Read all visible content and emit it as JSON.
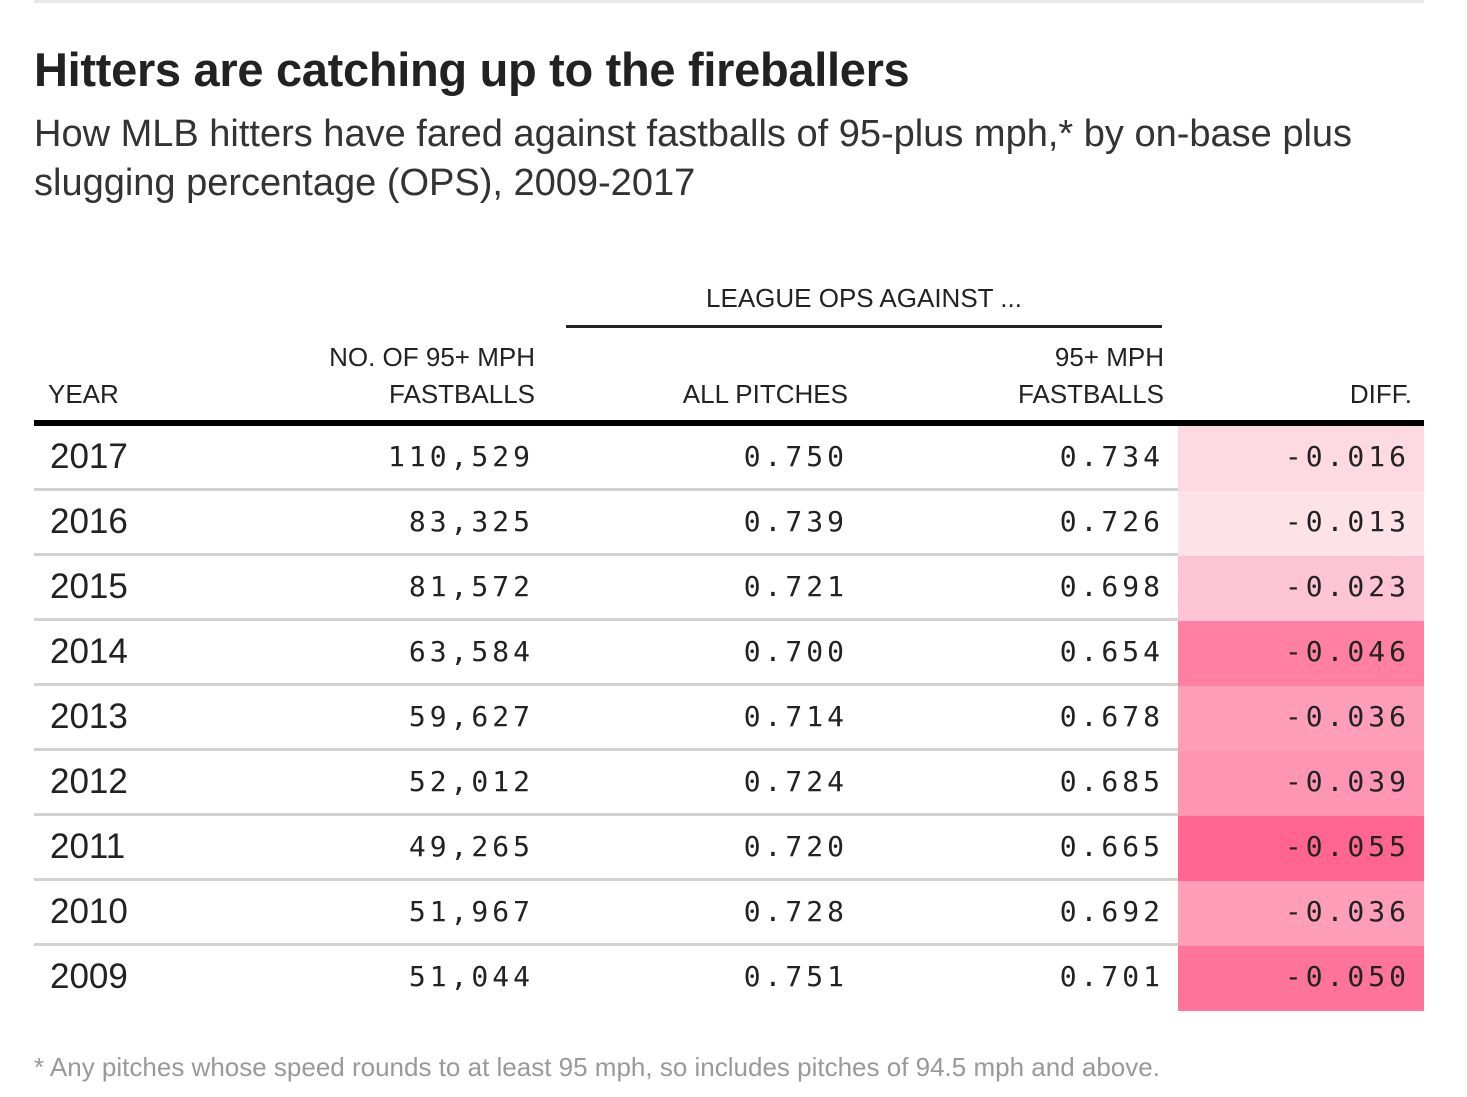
{
  "title": "Hitters are catching up to the fireballers",
  "subtitle": "How MLB hitters have fared against fastballs of 95-plus mph,* by on-base plus slugging percentage (OPS), 2009-2017",
  "footnote": "* Any pitches whose speed rounds to at least 95 mph, so includes pitches of 94.5 mph and above.",
  "colors": {
    "diff_scale_light": "#fde2e8",
    "diff_scale_dark": "#ff6590",
    "text": "#222222",
    "footnote": "#999999"
  },
  "chart_data": {
    "type": "table",
    "title": "Hitters are catching up to the fireballers",
    "subtitle": "How MLB hitters have fared against fastballs of 95-plus mph,* by on-base plus slugging percentage (OPS), 2009-2017",
    "group_header": "LEAGUE OPS AGAINST ...",
    "columns": {
      "year": "YEAR",
      "count_line1": "NO. OF 95+ MPH",
      "count_line2": "FASTBALLS",
      "all": "ALL PITCHES",
      "fast_line1": "95+ MPH",
      "fast_line2": "FASTBALLS",
      "diff": "DIFF."
    },
    "rows": [
      {
        "year": "2017",
        "count": "110,529",
        "all": "0.750",
        "fast": "0.734",
        "diff": "-0.016",
        "diff_value": -0.016
      },
      {
        "year": "2016",
        "count": "83,325",
        "all": "0.739",
        "fast": "0.726",
        "diff": "-0.013",
        "diff_value": -0.013
      },
      {
        "year": "2015",
        "count": "81,572",
        "all": "0.721",
        "fast": "0.698",
        "diff": "-0.023",
        "diff_value": -0.023
      },
      {
        "year": "2014",
        "count": "63,584",
        "all": "0.700",
        "fast": "0.654",
        "diff": "-0.046",
        "diff_value": -0.046
      },
      {
        "year": "2013",
        "count": "59,627",
        "all": "0.714",
        "fast": "0.678",
        "diff": "-0.036",
        "diff_value": -0.036
      },
      {
        "year": "2012",
        "count": "52,012",
        "all": "0.724",
        "fast": "0.685",
        "diff": "-0.039",
        "diff_value": -0.039
      },
      {
        "year": "2011",
        "count": "49,265",
        "all": "0.720",
        "fast": "0.665",
        "diff": "-0.055",
        "diff_value": -0.055
      },
      {
        "year": "2010",
        "count": "51,967",
        "all": "0.728",
        "fast": "0.692",
        "diff": "-0.036",
        "diff_value": -0.036
      },
      {
        "year": "2009",
        "count": "51,044",
        "all": "0.751",
        "fast": "0.701",
        "diff": "-0.050",
        "diff_value": -0.05
      }
    ]
  }
}
